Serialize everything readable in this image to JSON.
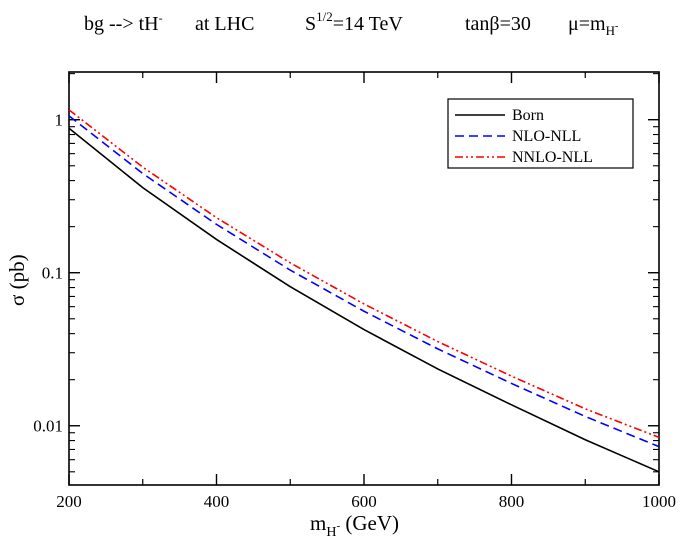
{
  "chart_data": {
    "type": "line",
    "title": {
      "process": "bg --> tH",
      "process_sup": "-",
      "collider": "at  LHC",
      "energy_base": "S",
      "energy_sup": "1/2",
      "energy_value": "=14 TeV",
      "tanbeta": "tanβ=30",
      "scale_base": "μ=m",
      "scale_sub": "H",
      "scale_subsup": "-"
    },
    "xlabel": {
      "base": "m",
      "sub": "H",
      "subsup": "-",
      "rest": " (GeV)"
    },
    "ylabel": "σ  (pb)",
    "xlim": [
      200,
      1000
    ],
    "ylim": [
      0.0041,
      2.05
    ],
    "yscale": "log",
    "x_ticks": [
      200,
      400,
      600,
      800,
      1000
    ],
    "x_tick_labels": [
      "200",
      "400",
      "600",
      "800",
      "1000"
    ],
    "y_ticks": [
      0.01,
      0.1,
      1
    ],
    "y_tick_labels": [
      "0.01",
      "0.1",
      "1"
    ],
    "legend_position": "top-right",
    "x": [
      200,
      300,
      400,
      500,
      600,
      700,
      800,
      900,
      1000
    ],
    "series": [
      {
        "name": "Born",
        "color": "#000000",
        "dash": "solid",
        "values": [
          0.88,
          0.36,
          0.165,
          0.081,
          0.0425,
          0.0235,
          0.0137,
          0.0081,
          0.005
        ]
      },
      {
        "name": "NLO-NLL",
        "color": "#0000ff",
        "dash": "dashed",
        "values": [
          1.06,
          0.445,
          0.207,
          0.104,
          0.056,
          0.0318,
          0.0189,
          0.0115,
          0.0073
        ]
      },
      {
        "name": "NNLO-NLL",
        "color": "#ff0000",
        "dash": "dashdotdot",
        "values": [
          1.16,
          0.49,
          0.229,
          0.116,
          0.0625,
          0.0355,
          0.0211,
          0.0129,
          0.0084
        ]
      }
    ]
  }
}
